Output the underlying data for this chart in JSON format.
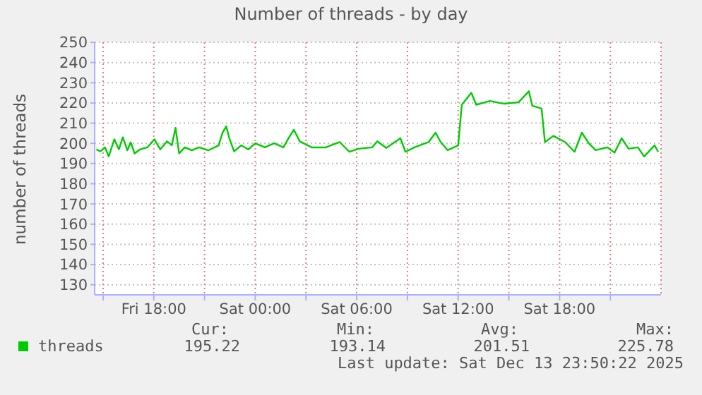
{
  "chart_data": {
    "type": "line",
    "title": "Number of threads - by day",
    "ylabel": "number of threads",
    "x": [
      "2025-12-12T14:36",
      "2025-12-12T14:50",
      "2025-12-12T15:07",
      "2025-12-12T15:20",
      "2025-12-12T15:40",
      "2025-12-12T15:56",
      "2025-12-12T16:10",
      "2025-12-12T16:26",
      "2025-12-12T16:38",
      "2025-12-12T16:52",
      "2025-12-12T17:11",
      "2025-12-12T17:37",
      "2025-12-12T18:02",
      "2025-12-12T18:23",
      "2025-12-12T18:47",
      "2025-12-12T19:04",
      "2025-12-12T19:17",
      "2025-12-12T19:30",
      "2025-12-12T19:50",
      "2025-12-12T20:15",
      "2025-12-12T20:40",
      "2025-12-12T21:13",
      "2025-12-12T21:50",
      "2025-12-12T22:04",
      "2025-12-12T22:17",
      "2025-12-12T22:28",
      "2025-12-12T22:45",
      "2025-12-12T23:10",
      "2025-12-12T23:35",
      "2025-12-13T00:00",
      "2025-12-13T00:34",
      "2025-12-13T01:07",
      "2025-12-13T01:40",
      "2025-12-13T02:00",
      "2025-12-13T02:17",
      "2025-12-13T02:38",
      "2025-12-13T03:20",
      "2025-12-13T04:10",
      "2025-12-13T05:00",
      "2025-12-13T05:34",
      "2025-12-13T06:07",
      "2025-12-13T06:55",
      "2025-12-13T07:13",
      "2025-12-13T07:45",
      "2025-12-13T08:35",
      "2025-12-13T08:53",
      "2025-12-13T09:25",
      "2025-12-13T10:15",
      "2025-12-13T10:40",
      "2025-12-13T10:58",
      "2025-12-13T11:23",
      "2025-12-13T12:00",
      "2025-12-13T12:13",
      "2025-12-13T12:47",
      "2025-12-13T13:04",
      "2025-12-13T13:53",
      "2025-12-13T14:43",
      "2025-12-13T15:34",
      "2025-12-13T16:11",
      "2025-12-13T16:23",
      "2025-12-13T16:56",
      "2025-12-13T17:08",
      "2025-12-13T17:38",
      "2025-12-13T18:20",
      "2025-12-13T18:53",
      "2025-12-13T19:19",
      "2025-12-13T19:43",
      "2025-12-13T20:08",
      "2025-12-13T20:50",
      "2025-12-13T21:15",
      "2025-12-13T21:40",
      "2025-12-13T22:05",
      "2025-12-13T22:38",
      "2025-12-13T23:00",
      "2025-12-13T23:37",
      "2025-12-13T23:50"
    ],
    "series": [
      {
        "name": "threads",
        "color": "#00cc00",
        "values": [
          197,
          196,
          198,
          193.5,
          202,
          197,
          203,
          196.5,
          200.5,
          195,
          197,
          198,
          202,
          197,
          201,
          199,
          207.7,
          195,
          198,
          196.5,
          198,
          196.5,
          199,
          205.3,
          208.4,
          202.5,
          196,
          199,
          197,
          200,
          198,
          200,
          198,
          203,
          206.7,
          201,
          198,
          198,
          200.6,
          195.8,
          197.3,
          198,
          201,
          197.7,
          202.5,
          195.8,
          198,
          200.6,
          205.3,
          200.6,
          196.6,
          199,
          219.1,
          225,
          219.1,
          221,
          219.6,
          220.3,
          225.8,
          218.6,
          217.2,
          200.6,
          203.7,
          200.6,
          195.8,
          205.3,
          200.1,
          196.6,
          198,
          195.4,
          202.5,
          197.3,
          198,
          193.5,
          199,
          195.8
        ]
      }
    ],
    "xlim": [
      "2025-12-12T14:30",
      "2025-12-14T00:00"
    ],
    "xticks": [
      {
        "value": "2025-12-12T15:00",
        "label": null
      },
      {
        "value": "2025-12-12T18:00",
        "label": "Fri 18:00"
      },
      {
        "value": "2025-12-12T21:00",
        "label": null
      },
      {
        "value": "2025-12-13T00:00",
        "label": "Sat 00:00"
      },
      {
        "value": "2025-12-13T03:00",
        "label": null
      },
      {
        "value": "2025-12-13T06:00",
        "label": "Sat 06:00"
      },
      {
        "value": "2025-12-13T09:00",
        "label": null
      },
      {
        "value": "2025-12-13T12:00",
        "label": "Sat 12:00"
      },
      {
        "value": "2025-12-13T15:00",
        "label": null
      },
      {
        "value": "2025-12-13T18:00",
        "label": "Sat 18:00"
      },
      {
        "value": "2025-12-13T21:00",
        "label": null
      }
    ],
    "ylim": [
      125,
      250
    ],
    "yticks": [
      130,
      140,
      150,
      160,
      170,
      180,
      190,
      200,
      210,
      220,
      230,
      240,
      250
    ],
    "grid": true,
    "legend": "bottom",
    "marker": "none",
    "line_style": "solid",
    "annotations": [
      "Cur:",
      "Min:",
      "Avg:",
      "Max:",
      "195.22",
      "193.14",
      "201.51",
      "225.78",
      "Last update: Sat Dec 13 23:50:22 2025"
    ]
  }
}
